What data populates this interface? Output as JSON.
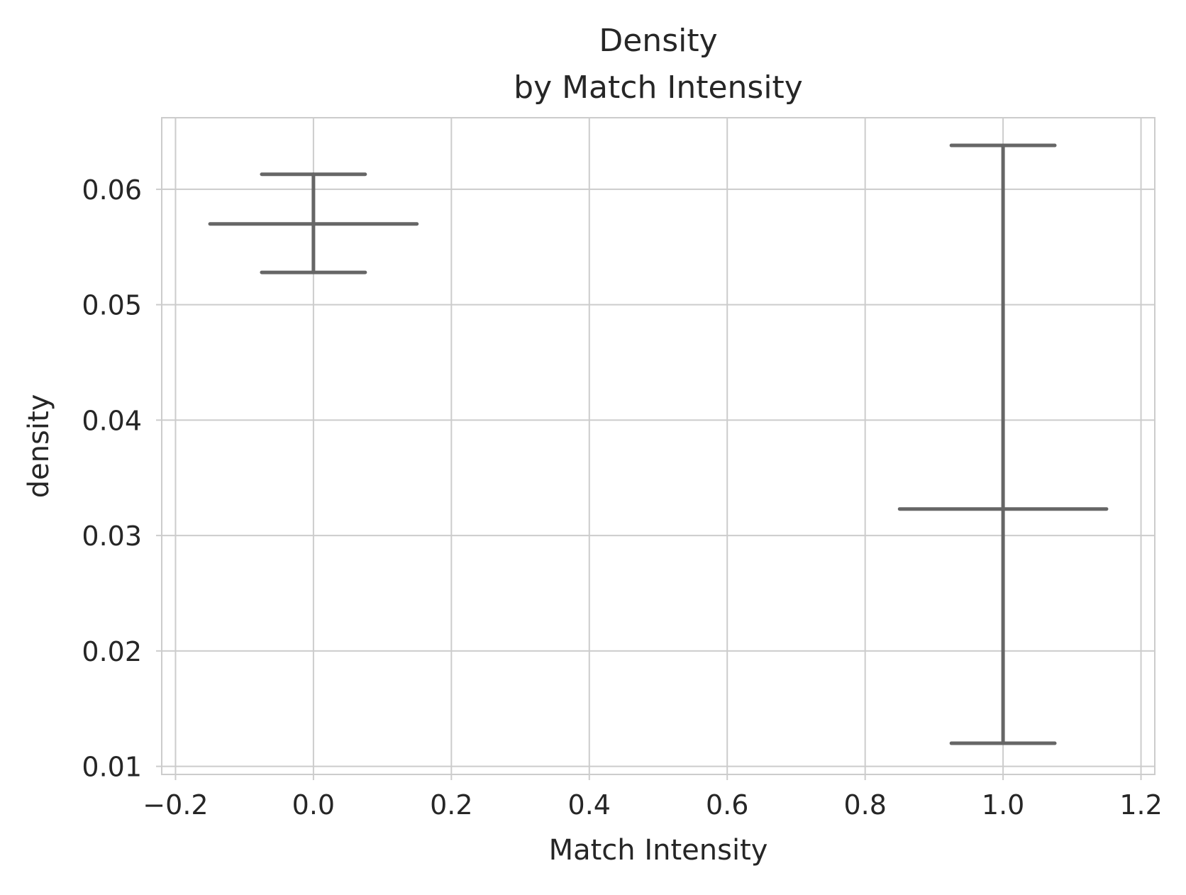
{
  "chart_data": {
    "type": "errorbar",
    "title": [
      "Density",
      "by Match Intensity"
    ],
    "xlabel": "Match Intensity",
    "ylabel": "density",
    "xlim": [
      -0.22,
      1.22
    ],
    "ylim": [
      0.0093,
      0.0662
    ],
    "xticks": [
      -0.2,
      0.0,
      0.2,
      0.4,
      0.6,
      0.8,
      1.0,
      1.2
    ],
    "xtick_labels": [
      "−0.2",
      "0.0",
      "0.2",
      "0.4",
      "0.6",
      "0.8",
      "1.0",
      "1.2"
    ],
    "yticks": [
      0.01,
      0.02,
      0.03,
      0.04,
      0.05,
      0.06
    ],
    "ytick_labels": [
      "0.01",
      "0.02",
      "0.03",
      "0.04",
      "0.05",
      "0.06"
    ],
    "grid": true,
    "legend": "none",
    "colors": {
      "errorbar": "#666666",
      "grid": "#cccccc",
      "text": "#262626",
      "background": "#ffffff"
    },
    "points": [
      {
        "x": 0.0,
        "y": 0.057,
        "lower": 0.0528,
        "upper": 0.0613
      },
      {
        "x": 1.0,
        "y": 0.0323,
        "lower": 0.012,
        "upper": 0.0638
      }
    ]
  }
}
